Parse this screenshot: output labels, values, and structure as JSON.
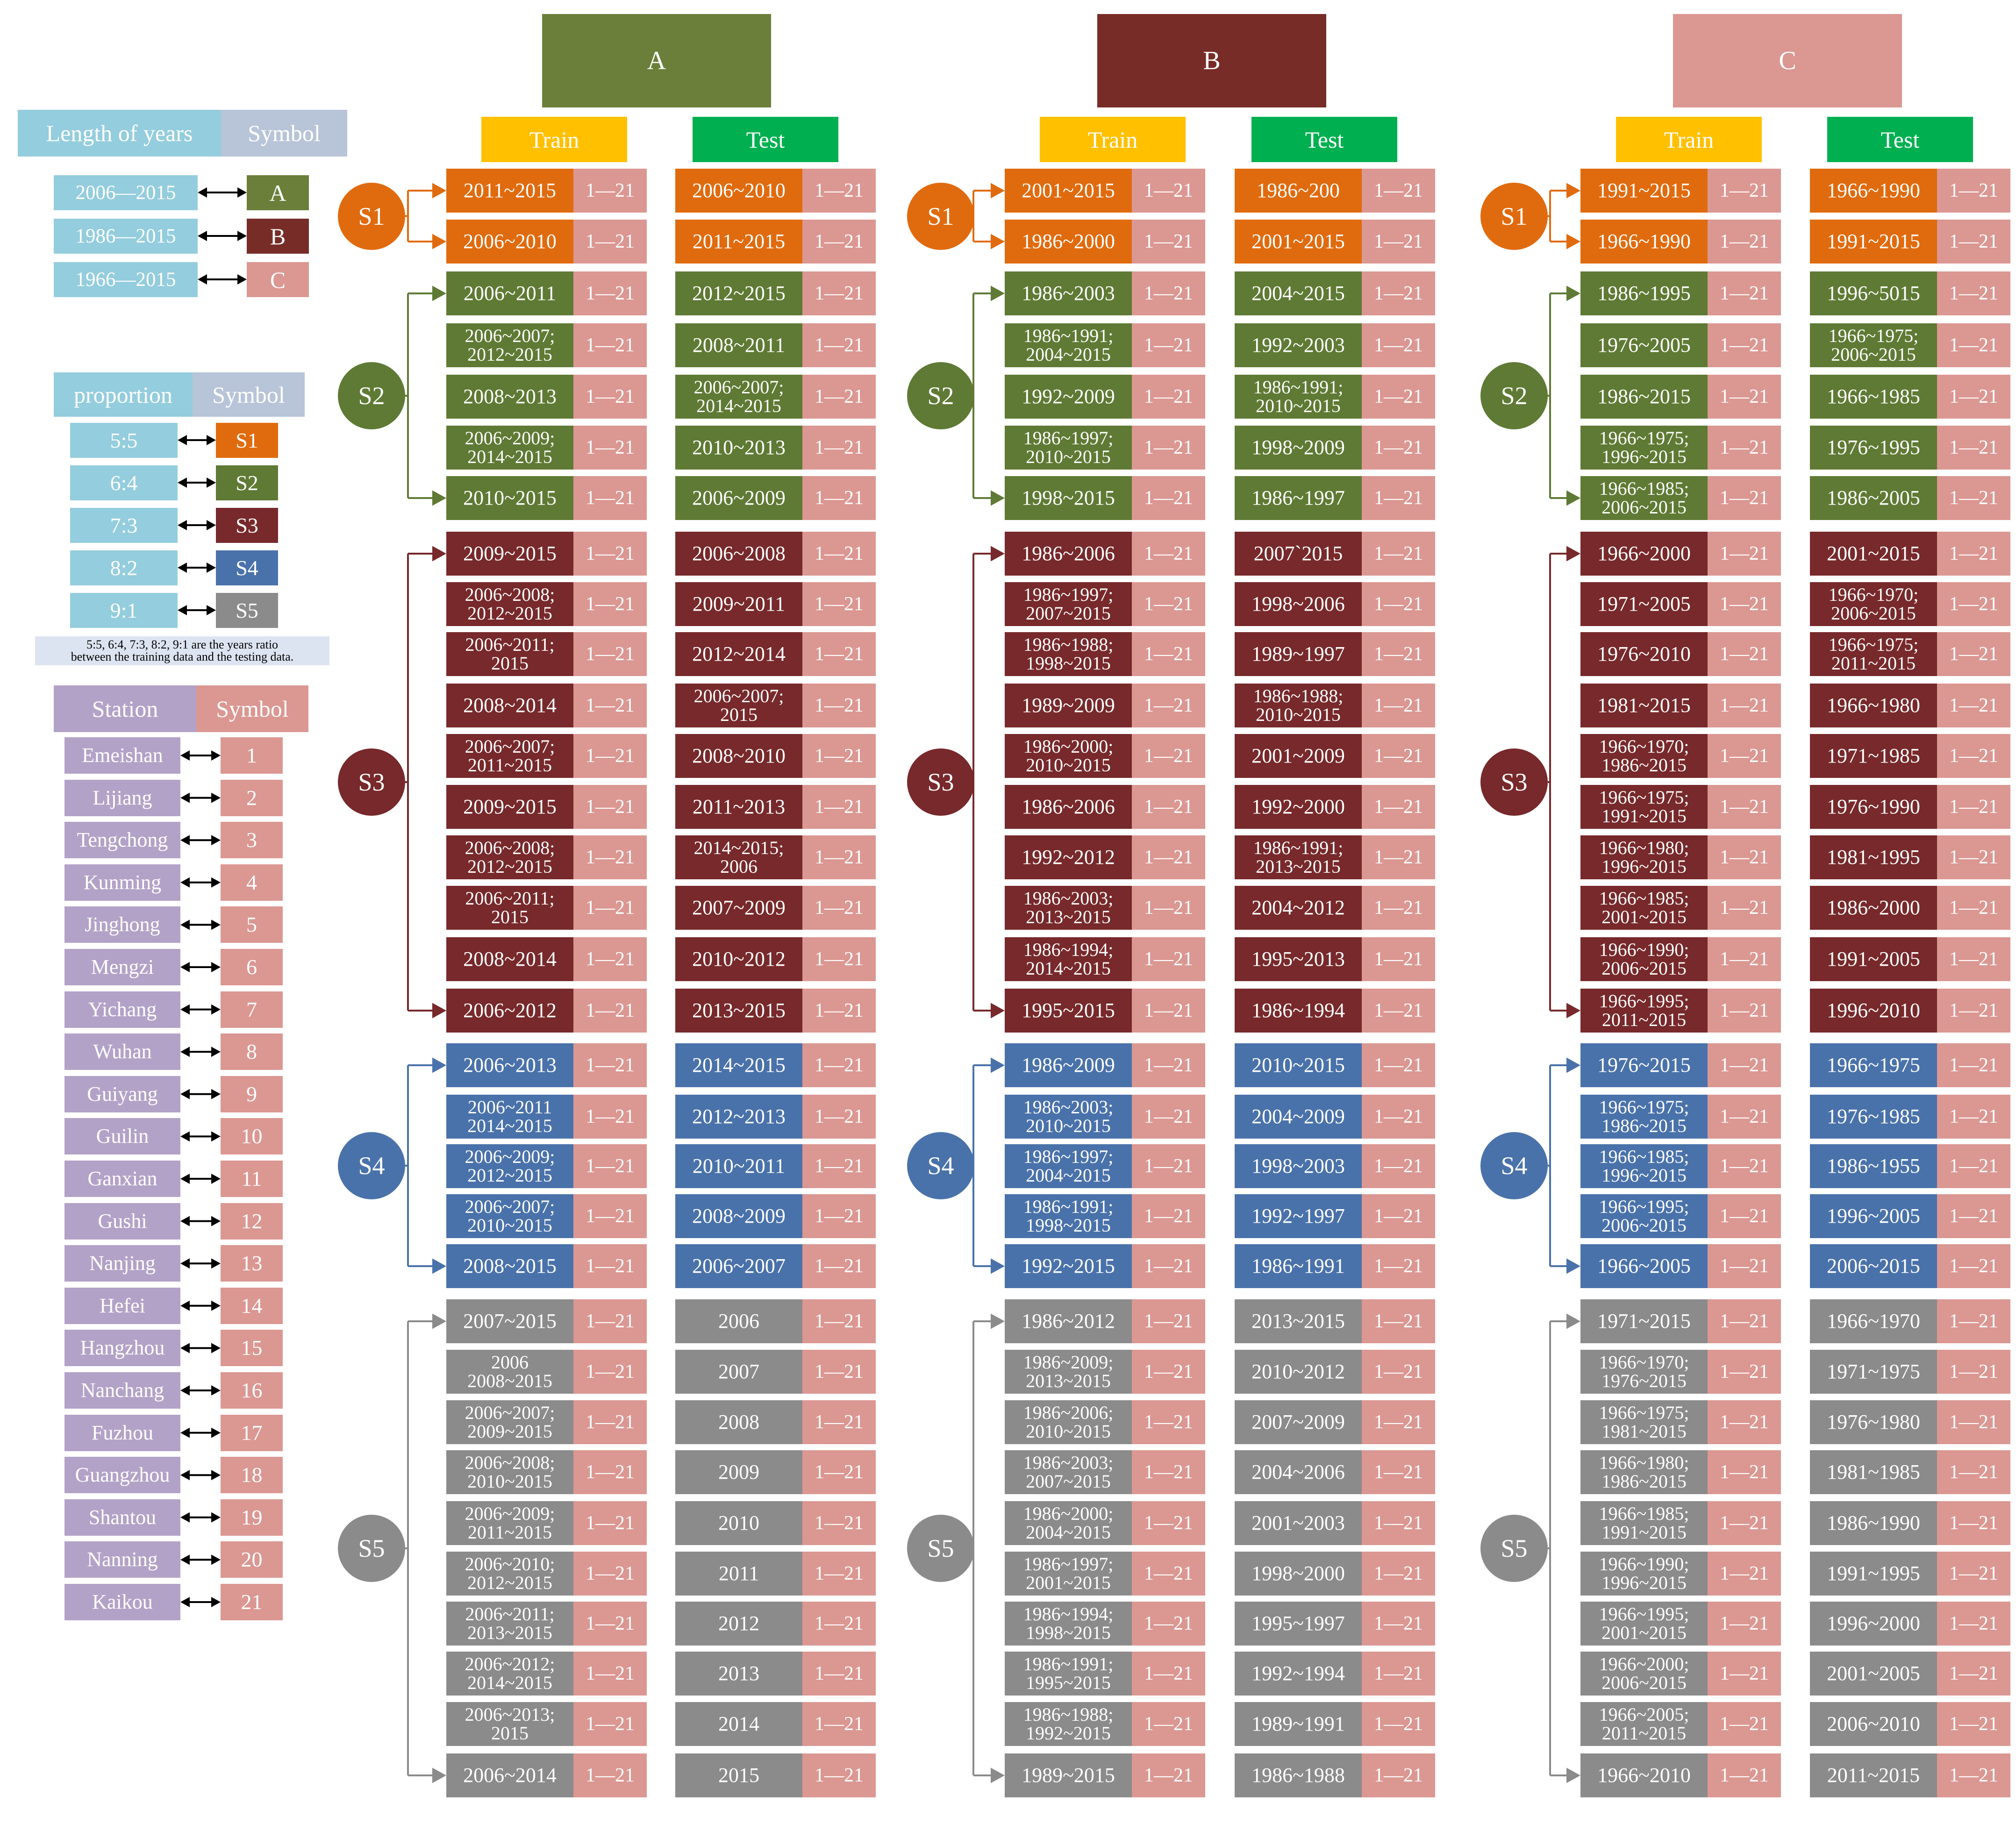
{
  "legend": {
    "years": {
      "header": [
        "Length of years",
        "Symbol"
      ],
      "items": [
        {
          "label": "2006—2015",
          "symbol": "A"
        },
        {
          "label": "1986—2015",
          "symbol": "B"
        },
        {
          "label": "1966—2015",
          "symbol": "C"
        }
      ]
    },
    "proportion": {
      "header": [
        "proportion",
        "Symbol"
      ],
      "items": [
        {
          "label": "5:5",
          "symbol": "S1"
        },
        {
          "label": "6:4",
          "symbol": "S2"
        },
        {
          "label": "7:3",
          "symbol": "S3"
        },
        {
          "label": "8:2",
          "symbol": "S4"
        },
        {
          "label": "9:1",
          "symbol": "S5"
        }
      ],
      "note": "5:5, 6:4, 7:3, 8:2, 9:1 are the years ratio\nbetween the training data and the testing data."
    },
    "stations": {
      "header": [
        "Station",
        "Symbol"
      ],
      "items": [
        {
          "label": "Emeishan",
          "symbol": "1"
        },
        {
          "label": "Lijiang",
          "symbol": "2"
        },
        {
          "label": "Tengchong",
          "symbol": "3"
        },
        {
          "label": "Kunming",
          "symbol": "4"
        },
        {
          "label": "Jinghong",
          "symbol": "5"
        },
        {
          "label": "Mengzi",
          "symbol": "6"
        },
        {
          "label": "Yichang",
          "symbol": "7"
        },
        {
          "label": "Wuhan",
          "symbol": "8"
        },
        {
          "label": "Guiyang",
          "symbol": "9"
        },
        {
          "label": "Guilin",
          "symbol": "10"
        },
        {
          "label": "Ganxian",
          "symbol": "11"
        },
        {
          "label": "Gushi",
          "symbol": "12"
        },
        {
          "label": "Nanjing",
          "symbol": "13"
        },
        {
          "label": "Hefei",
          "symbol": "14"
        },
        {
          "label": "Hangzhou",
          "symbol": "15"
        },
        {
          "label": "Nanchang",
          "symbol": "16"
        },
        {
          "label": "Fuzhou",
          "symbol": "17"
        },
        {
          "label": "Guangzhou",
          "symbol": "18"
        },
        {
          "label": "Shantou",
          "symbol": "19"
        },
        {
          "label": "Nanning",
          "symbol": "20"
        },
        {
          "label": "Kaikou",
          "symbol": "21"
        }
      ]
    }
  },
  "station_range": "1—21",
  "train_label": "Train",
  "test_label": "Test",
  "colors": {
    "A": "#6b7f3a",
    "B": "#772c28",
    "C": "#db9792",
    "S1": "#e06b0e",
    "S2": "#5f7a34",
    "S3": "#77292b",
    "S4": "#4a72aa",
    "S5": "#8b8b8b",
    "pink": "#db9792",
    "train": "#ffc000",
    "test": "#00b050",
    "legend_blue": "#94cddd",
    "legend_gray": "#b8c4d8",
    "legend_purple": "#b3a2c7"
  },
  "groups": [
    {
      "label": "A",
      "scenarios": [
        {
          "label": "S1",
          "rows": [
            [
              "2011~2015",
              "2006~2010"
            ],
            [
              "2006~2010",
              "2011~2015"
            ]
          ]
        },
        {
          "label": "S2",
          "rows": [
            [
              "2006~2011",
              "2012~2015"
            ],
            [
              "2006~2007;\n2012~2015",
              "2008~2011"
            ],
            [
              "2008~2013",
              "2006~2007;\n2014~2015"
            ],
            [
              "2006~2009;\n2014~2015",
              "2010~2013"
            ],
            [
              "2010~2015",
              "2006~2009"
            ]
          ]
        },
        {
          "label": "S3",
          "rows": [
            [
              "2009~2015",
              "2006~2008"
            ],
            [
              "2006~2008;\n2012~2015",
              "2009~2011"
            ],
            [
              "2006~2011;\n2015",
              "2012~2014"
            ],
            [
              "2008~2014",
              "2006~2007;\n2015"
            ],
            [
              "2006~2007;\n2011~2015",
              "2008~2010"
            ],
            [
              "2009~2015",
              "2011~2013"
            ],
            [
              "2006~2008;\n2012~2015",
              "2014~2015;\n2006"
            ],
            [
              "2006~2011;\n2015",
              "2007~2009"
            ],
            [
              "2008~2014",
              "2010~2012"
            ],
            [
              "2006~2012",
              "2013~2015"
            ]
          ]
        },
        {
          "label": "S4",
          "rows": [
            [
              "2006~2013",
              "2014~2015"
            ],
            [
              "2006~2011\n2014~2015",
              "2012~2013"
            ],
            [
              "2006~2009;\n2012~2015",
              "2010~2011"
            ],
            [
              "2006~2007;\n2010~2015",
              "2008~2009"
            ],
            [
              "2008~2015",
              "2006~2007"
            ]
          ]
        },
        {
          "label": "S5",
          "rows": [
            [
              "2007~2015",
              "2006"
            ],
            [
              "2006\n2008~2015",
              "2007"
            ],
            [
              "2006~2007;\n2009~2015",
              "2008"
            ],
            [
              "2006~2008;\n2010~2015",
              "2009"
            ],
            [
              "2006~2009;\n2011~2015",
              "2010"
            ],
            [
              "2006~2010;\n2012~2015",
              "2011"
            ],
            [
              "2006~2011;\n2013~2015",
              "2012"
            ],
            [
              "2006~2012;\n2014~2015",
              "2013"
            ],
            [
              "2006~2013;\n2015",
              "2014"
            ],
            [
              "2006~2014",
              "2015"
            ]
          ]
        }
      ]
    },
    {
      "label": "B",
      "scenarios": [
        {
          "label": "S1",
          "rows": [
            [
              "2001~2015",
              "1986~200"
            ],
            [
              "1986~2000",
              "2001~2015"
            ]
          ]
        },
        {
          "label": "S2",
          "rows": [
            [
              "1986~2003",
              "2004~2015"
            ],
            [
              "1986~1991;\n2004~2015",
              "1992~2003"
            ],
            [
              "1992~2009",
              "1986~1991;\n2010~2015"
            ],
            [
              "1986~1997;\n2010~2015",
              "1998~2009"
            ],
            [
              "1998~2015",
              "1986~1997"
            ]
          ]
        },
        {
          "label": "S3",
          "rows": [
            [
              "1986~2006",
              "2007`2015"
            ],
            [
              "1986~1997;\n2007~2015",
              "1998~2006"
            ],
            [
              "1986~1988;\n1998~2015",
              "1989~1997"
            ],
            [
              "1989~2009",
              "1986~1988;\n2010~2015"
            ],
            [
              "1986~2000;\n2010~2015",
              "2001~2009"
            ],
            [
              "1986~2006",
              "1992~2000"
            ],
            [
              "1992~2012",
              "1986~1991;\n2013~2015"
            ],
            [
              "1986~2003;\n2013~2015",
              "2004~2012"
            ],
            [
              "1986~1994;\n2014~2015",
              "1995~2013"
            ],
            [
              "1995~2015",
              "1986~1994"
            ]
          ]
        },
        {
          "label": "S4",
          "rows": [
            [
              "1986~2009",
              "2010~2015"
            ],
            [
              "1986~2003;\n2010~2015",
              "2004~2009"
            ],
            [
              "1986~1997;\n2004~2015",
              "1998~2003"
            ],
            [
              "1986~1991;\n1998~2015",
              "1992~1997"
            ],
            [
              "1992~2015",
              "1986~1991"
            ]
          ]
        },
        {
          "label": "S5",
          "rows": [
            [
              "1986~2012",
              "2013~2015"
            ],
            [
              "1986~2009;\n2013~2015",
              "2010~2012"
            ],
            [
              "1986~2006;\n2010~2015",
              "2007~2009"
            ],
            [
              "1986~2003;\n2007~2015",
              "2004~2006"
            ],
            [
              "1986~2000;\n2004~2015",
              "2001~2003"
            ],
            [
              "1986~1997;\n2001~2015",
              "1998~2000"
            ],
            [
              "1986~1994;\n1998~2015",
              "1995~1997"
            ],
            [
              "1986~1991;\n1995~2015",
              "1992~1994"
            ],
            [
              "1986~1988;\n1992~2015",
              "1989~1991"
            ],
            [
              "1989~2015",
              "1986~1988"
            ]
          ]
        }
      ]
    },
    {
      "label": "C",
      "scenarios": [
        {
          "label": "S1",
          "rows": [
            [
              "1991~2015",
              "1966~1990"
            ],
            [
              "1966~1990",
              "1991~2015"
            ]
          ]
        },
        {
          "label": "S2",
          "rows": [
            [
              "1986~1995",
              "1996~5015"
            ],
            [
              "1976~2005",
              "1966~1975;\n2006~2015"
            ],
            [
              "1986~2015",
              "1966~1985"
            ],
            [
              "1966~1975;\n1996~2015",
              "1976~1995"
            ],
            [
              "1966~1985;\n2006~2015",
              "1986~2005"
            ]
          ]
        },
        {
          "label": "S3",
          "rows": [
            [
              "1966~2000",
              "2001~2015"
            ],
            [
              "1971~2005",
              "1966~1970;\n2006~2015"
            ],
            [
              "1976~2010",
              "1966~1975;\n2011~2015"
            ],
            [
              "1981~2015",
              "1966~1980"
            ],
            [
              "1966~1970;\n1986~2015",
              "1971~1985"
            ],
            [
              "1966~1975;\n1991~2015",
              "1976~1990"
            ],
            [
              "1966~1980;\n1996~2015",
              "1981~1995"
            ],
            [
              "1966~1985;\n2001~2015",
              "1986~2000"
            ],
            [
              "1966~1990;\n2006~2015",
              "1991~2005"
            ],
            [
              "1966~1995;\n2011~2015",
              "1996~2010"
            ]
          ]
        },
        {
          "label": "S4",
          "rows": [
            [
              "1976~2015",
              "1966~1975"
            ],
            [
              "1966~1975;\n1986~2015",
              "1976~1985"
            ],
            [
              "1966~1985;\n1996~2015",
              "1986~1955"
            ],
            [
              "1966~1995;\n2006~2015",
              "1996~2005"
            ],
            [
              "1966~2005",
              "2006~2015"
            ]
          ]
        },
        {
          "label": "S5",
          "rows": [
            [
              "1971~2015",
              "1966~1970"
            ],
            [
              "1966~1970;\n1976~2015",
              "1971~1975"
            ],
            [
              "1966~1975;\n1981~2015",
              "1976~1980"
            ],
            [
              "1966~1980;\n1986~2015",
              "1981~1985"
            ],
            [
              "1966~1985;\n1991~2015",
              "1986~1990"
            ],
            [
              "1966~1990;\n1996~2015",
              "1991~1995"
            ],
            [
              "1966~1995;\n2001~2015",
              "1996~2000"
            ],
            [
              "1966~2000;\n2006~2015",
              "2001~2005"
            ],
            [
              "1966~2005;\n2011~2015",
              "2006~2010"
            ],
            [
              "1966~2010",
              "2011~2015"
            ]
          ]
        }
      ]
    }
  ]
}
